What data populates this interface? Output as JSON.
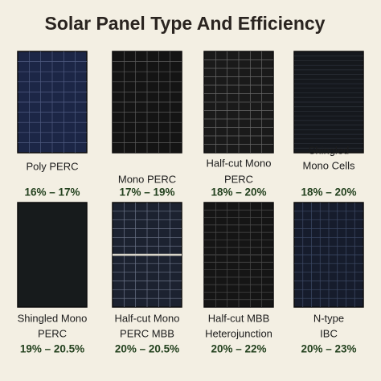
{
  "title": "Solar Panel Type And Efficiency",
  "panels": [
    {
      "name_lines": [
        "Poly PERC"
      ],
      "efficiency": "16% – 17%"
    },
    {
      "name_lines": [
        "Mono PERC"
      ],
      "efficiency": "17% – 19%"
    },
    {
      "name_lines": [
        "Half-cut Mono",
        "PERC"
      ],
      "efficiency": "18% – 20%"
    },
    {
      "name_lines": [
        "Shingled",
        "Mono Cells"
      ],
      "efficiency": "18% – 20%"
    },
    {
      "name_lines": [
        "Shingled Mono",
        "PERC"
      ],
      "efficiency": "19% – 20.5%"
    },
    {
      "name_lines": [
        "Half-cut Mono",
        "PERC MBB"
      ],
      "efficiency": "20% – 20.5%"
    },
    {
      "name_lines": [
        "Half-cut MBB",
        "Heterojunction"
      ],
      "efficiency": "20% – 22%"
    },
    {
      "name_lines": [
        "N-type",
        "IBC"
      ],
      "efficiency": "20% – 23%"
    }
  ]
}
